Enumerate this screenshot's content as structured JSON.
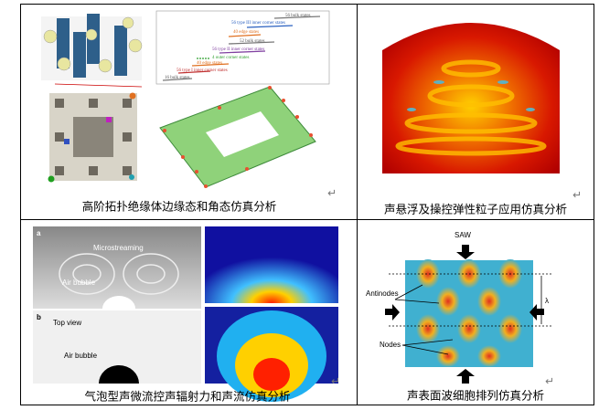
{
  "cells": [
    {
      "caption": "高阶拓扑绝缘体边缘态和角态仿真分析",
      "labels": [
        "56 bulk states",
        "56 type III inner corner states",
        "40 edge states",
        "52 bulk states",
        "56 type II inner corner states",
        "4 outer corner states",
        "40 edge states",
        "56 type I inner corner states",
        "16 bulk states"
      ]
    },
    {
      "caption": "声悬浮及操控弹性粒子应用仿真分析"
    },
    {
      "caption": "气泡型声微流控声辐射力和声流仿真分析",
      "labels": [
        "a",
        "Microstreaming",
        "Air bubble",
        "b",
        "Top view",
        "Air bubble"
      ]
    },
    {
      "caption": "声表面波细胞排列仿真分析",
      "labels": [
        "SAW",
        "Antinodes",
        "Nodes",
        "λ"
      ]
    }
  ],
  "paragraph_mark": "↵"
}
